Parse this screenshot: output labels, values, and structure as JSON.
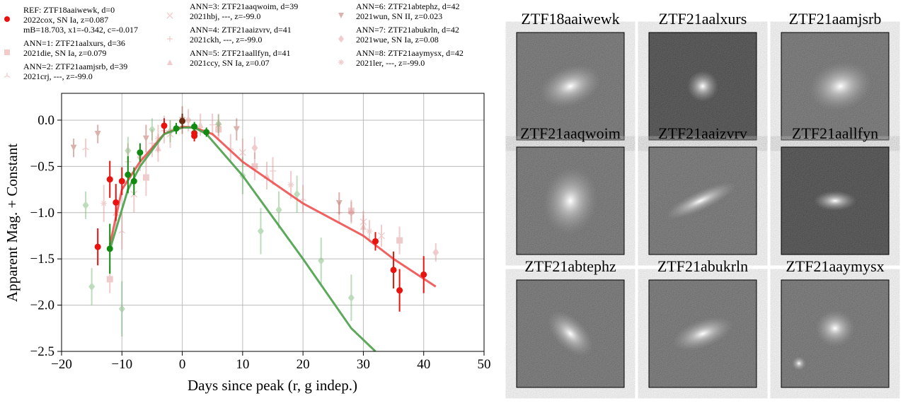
{
  "chart_data": {
    "type": "scatter",
    "xlabel": "Days since peak (r, g indep.)",
    "ylabel": "Apparent Mag. + Constant",
    "xlim": [
      -20,
      50
    ],
    "ylim": [
      -2.5,
      0.29
    ],
    "xticks": [
      {
        "value": -20,
        "label": "−20"
      },
      {
        "value": -10,
        "label": "−10"
      },
      0,
      10,
      20,
      30,
      40,
      50
    ],
    "yticks": [
      {
        "value": -2.5,
        "label": "−2.5"
      },
      {
        "value": -2.0,
        "label": "−2.0"
      },
      {
        "value": -1.5,
        "label": "−1.5"
      },
      {
        "value": -1.0,
        "label": "−1.0"
      },
      {
        "value": -0.5,
        "label": "−0.5"
      },
      {
        "value": 0.0,
        "label": "0.0"
      }
    ],
    "grid": true,
    "alpha": 0.4,
    "series": [
      {
        "label_lines": [
          "REF: ZTF18aaiwewk, d=0",
          "2022cox, SN Ia, z=0.087",
          "mB=18.703, x1=-0.342, c=-0.017"
        ],
        "color": "#e8120e",
        "marker": "o",
        "x": [
          -14,
          -12,
          -11,
          -10,
          -3,
          2,
          2,
          32,
          35,
          36,
          40
        ],
        "values": [
          -1.37,
          -0.64,
          -0.89,
          -0.66,
          -0.06,
          -0.14,
          -0.17,
          -1.31,
          -1.62,
          -1.84,
          -1.67
        ],
        "errors": [
          0.2,
          0.2,
          0.2,
          0.15,
          0.08,
          0.06,
          0.06,
          0.1,
          0.2,
          0.23,
          0.2
        ]
      },
      {
        "color": "#118a11",
        "marker": "o",
        "x": [
          -12,
          -9,
          -8,
          -7,
          -1,
          2,
          4
        ],
        "values": [
          -1.39,
          -0.59,
          -0.66,
          -0.35,
          -0.09,
          -0.07,
          -0.13
        ],
        "errors": [
          0.27,
          0.2,
          0.15,
          0.1,
          0.06,
          0.05,
          0.05
        ]
      },
      {
        "color": "#6b2a10",
        "marker": "o",
        "x": [
          0
        ],
        "values": [
          -0.01
        ],
        "errors": [
          0.08
        ]
      },
      {
        "label_lines": [
          "ANN=1: ZTF21aalxurs, d=36",
          "2021die, SN Ia, z=0.079"
        ],
        "color": "#d98080",
        "marker": "s",
        "x": [
          -12,
          -6,
          6,
          12,
          28,
          36
        ],
        "values": [
          -1.72,
          -0.62,
          -0.1,
          -0.5,
          -0.98,
          -1.3
        ],
        "errors": [
          0.15,
          0.2,
          0.1,
          0.15,
          0.12,
          0.15
        ]
      },
      {
        "label_lines": [
          "ANN=2: ZTF21aamjsrb, d=39",
          "2021crj, ---, z=-99.0"
        ],
        "color": "#d98080",
        "marker": "1",
        "x": [
          -16,
          -10,
          -3,
          8,
          20
        ],
        "values": [
          -0.3,
          -1.2,
          -0.1,
          -0.3,
          -0.85
        ],
        "errors": [
          0.1,
          0.2,
          0.15,
          0.15,
          0.15
        ]
      },
      {
        "label_lines": [
          "ANN=3: ZTF21aaqwoim, d=39",
          "2021hbj, ---, z=-99.0"
        ],
        "color": "#d98080",
        "marker": "x",
        "x": [
          -8,
          -2,
          10,
          30,
          33
        ],
        "values": [
          -0.8,
          -0.15,
          -0.35,
          -1.1,
          -1.25
        ],
        "errors": [
          0.2,
          0.15,
          0.15,
          0.12,
          0.12
        ]
      },
      {
        "label_lines": [
          "ANN=4: ZTF21aaizvrv, d=41",
          "2021ckh, ---, z=-99.0"
        ],
        "color": "#d98080",
        "marker": "+",
        "x": [
          -9,
          -5,
          5,
          15,
          26
        ],
        "values": [
          -0.45,
          -0.25,
          -0.05,
          -0.55,
          -1.0
        ],
        "errors": [
          0.2,
          0.15,
          0.12,
          0.15,
          0.12
        ]
      },
      {
        "label_lines": [
          "ANN=5: ZTF21aallfyn, d=41",
          "2021ccy, SN Ia, z=0.07"
        ],
        "color": "#d98080",
        "marker": "^",
        "x": [
          -11,
          -4,
          3,
          14,
          30
        ],
        "values": [
          -1.0,
          -0.3,
          -0.05,
          -0.6,
          -1.15
        ],
        "errors": [
          0.2,
          0.15,
          0.12,
          0.15,
          0.12
        ]
      },
      {
        "label_lines": [
          "ANN=6: ZTF21abtephz, d=42",
          "2021wun, SN II, z=0.023"
        ],
        "color": "#a04030",
        "marker": "v",
        "x": [
          -18,
          -14,
          -6,
          0,
          9,
          26
        ],
        "values": [
          -0.3,
          -0.15,
          -0.2,
          0.0,
          -0.1,
          -0.9
        ],
        "errors": [
          0.1,
          0.1,
          0.15,
          0.15,
          0.12,
          0.12
        ]
      },
      {
        "label_lines": [
          "ANN=7: ZTF21abukrln, d=42",
          "2021wue, SN Ia, z=0.08"
        ],
        "color": "#d98080",
        "marker": "d",
        "x": [
          -7,
          1,
          12,
          28,
          42
        ],
        "values": [
          -0.4,
          0.0,
          -0.3,
          -1.0,
          -1.43
        ],
        "errors": [
          0.15,
          0.12,
          0.12,
          0.12,
          0.1
        ]
      },
      {
        "label_lines": [
          "ANN=8: ZTF21aaymysx, d=42",
          "2021ler, ---, z=-99.0"
        ],
        "color": "#d98080",
        "marker": "*",
        "x": [
          -13,
          -4,
          6,
          18,
          31
        ],
        "values": [
          -0.9,
          -0.2,
          -0.05,
          -0.7,
          -1.2
        ],
        "errors": [
          0.2,
          0.15,
          0.12,
          0.15,
          0.12
        ]
      },
      {
        "color": "#5aaa5a",
        "marker": "d",
        "x": [
          -16,
          -15,
          -10,
          -9,
          -5,
          -2,
          6,
          10,
          13,
          16,
          19,
          23,
          28
        ],
        "values": [
          -0.92,
          -1.8,
          -2.04,
          -0.33,
          -0.1,
          -0.12,
          -0.04,
          -0.6,
          -1.2,
          -0.97,
          -0.8,
          -1.52,
          -1.92
        ],
        "errors": [
          0.15,
          0.2,
          0.3,
          0.15,
          0.12,
          0.12,
          0.1,
          0.2,
          0.25,
          0.2,
          0.2,
          0.25,
          0.25
        ]
      }
    ],
    "fits": [
      {
        "color": "#f05050",
        "x": [
          -12,
          -10,
          -7,
          -3,
          0,
          2,
          5,
          10,
          20,
          30,
          35,
          42
        ],
        "values": [
          -1.35,
          -0.75,
          -0.45,
          -0.15,
          -0.07,
          -0.08,
          -0.15,
          -0.45,
          -0.9,
          -1.25,
          -1.5,
          -1.8
        ]
      },
      {
        "color": "#4aa04a",
        "x": [
          -12,
          -9,
          -7,
          -3,
          0,
          2,
          4,
          10,
          20,
          28,
          32
        ],
        "values": [
          -1.4,
          -0.75,
          -0.5,
          -0.15,
          -0.08,
          -0.08,
          -0.15,
          -0.6,
          -1.5,
          -2.25,
          -2.5
        ]
      }
    ]
  },
  "thumbnails": [
    {
      "title": "ZTF18aaiwewk"
    },
    {
      "title": "ZTF21aalxurs"
    },
    {
      "title": "ZTF21aamjsrb"
    },
    {
      "title": "ZTF21aaqwoim"
    },
    {
      "title": "ZTF21aaizvrv"
    },
    {
      "title": "ZTF21aallfyn"
    },
    {
      "title": "ZTF21abtephz"
    },
    {
      "title": "ZTF21abukrln"
    },
    {
      "title": "ZTF21aaymysx"
    }
  ]
}
